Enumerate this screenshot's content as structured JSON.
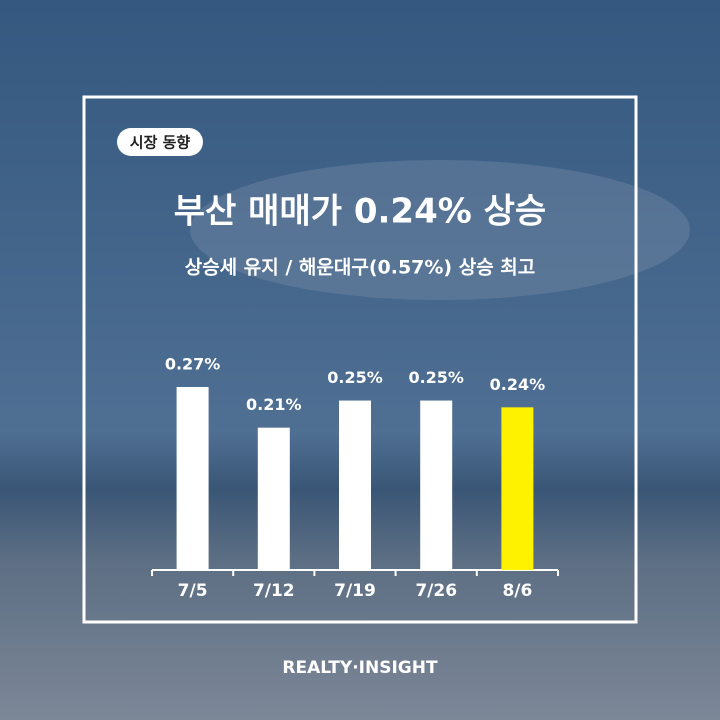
{
  "chart_data": {
    "type": "bar",
    "badge": "시장 동향",
    "title": "부산 매매가 0.24% 상승",
    "subtitle": "상승세 유지 / 해운대구(0.57%) 상승 최고",
    "categories": [
      "7/5",
      "7/12",
      "7/19",
      "7/26",
      "8/6"
    ],
    "values": [
      0.27,
      0.21,
      0.25,
      0.25,
      0.24
    ],
    "value_labels": [
      "0.27%",
      "0.21%",
      "0.25%",
      "0.25%",
      "0.24%"
    ],
    "colors": [
      "#ffffff",
      "#ffffff",
      "#ffffff",
      "#ffffff",
      "#fff200"
    ],
    "footer": "REALTY·INSIGHT"
  }
}
